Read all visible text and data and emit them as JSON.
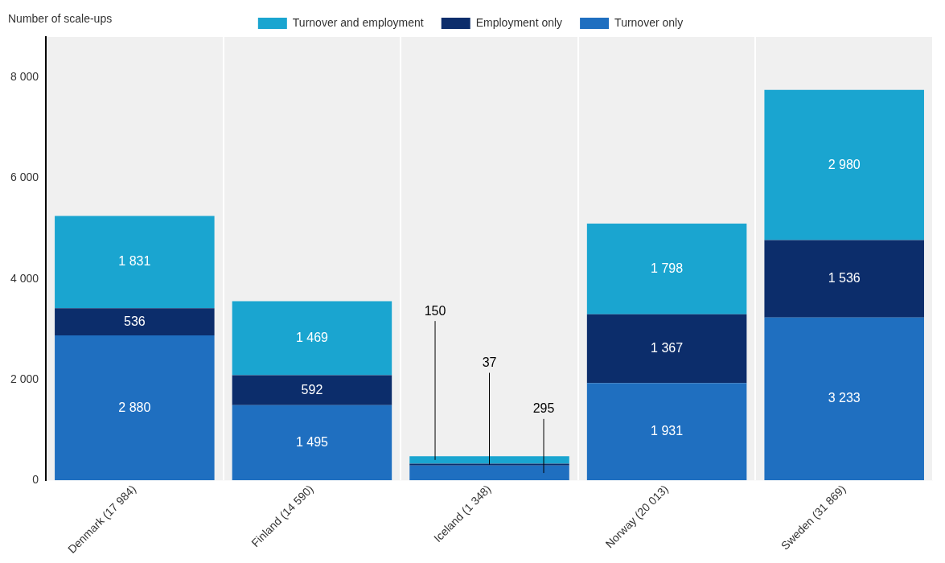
{
  "chart_data": {
    "type": "bar",
    "stacked": true,
    "ylabel": "Number of scale-ups",
    "legend": "top",
    "grid": "x",
    "categories": [
      "Denmark (17 984)",
      "Finland (14 590)",
      "Iceland (1 348)",
      "Norway (20 013)",
      "Sweden (31 869)"
    ],
    "ylim": [
      0,
      8800
    ],
    "yticks": [
      {
        "value": 0,
        "label": "0"
      },
      {
        "value": 2000,
        "label": "2 000"
      },
      {
        "value": 4000,
        "label": "4 000"
      },
      {
        "value": 6000,
        "label": "6 000"
      },
      {
        "value": 8000,
        "label": "8 000"
      }
    ],
    "series": [
      {
        "name": "Turnover only",
        "color": "#1f6fc0",
        "values": [
          2880,
          1495,
          295,
          1931,
          3233
        ],
        "value_labels": [
          "2 880",
          "1 495",
          "295",
          "1 931",
          "3 233"
        ]
      },
      {
        "name": "Employment only",
        "color": "#0c2d6b",
        "values": [
          536,
          592,
          37,
          1367,
          1536
        ],
        "value_labels": [
          "536",
          "592",
          "37",
          "1 367",
          "1 536"
        ]
      },
      {
        "name": "Turnover and employment",
        "color": "#1aa5d0",
        "values": [
          1831,
          1469,
          150,
          1798,
          2980
        ],
        "value_labels": [
          "1 831",
          "1 469",
          "150",
          "1 798",
          "2 980"
        ]
      }
    ]
  }
}
